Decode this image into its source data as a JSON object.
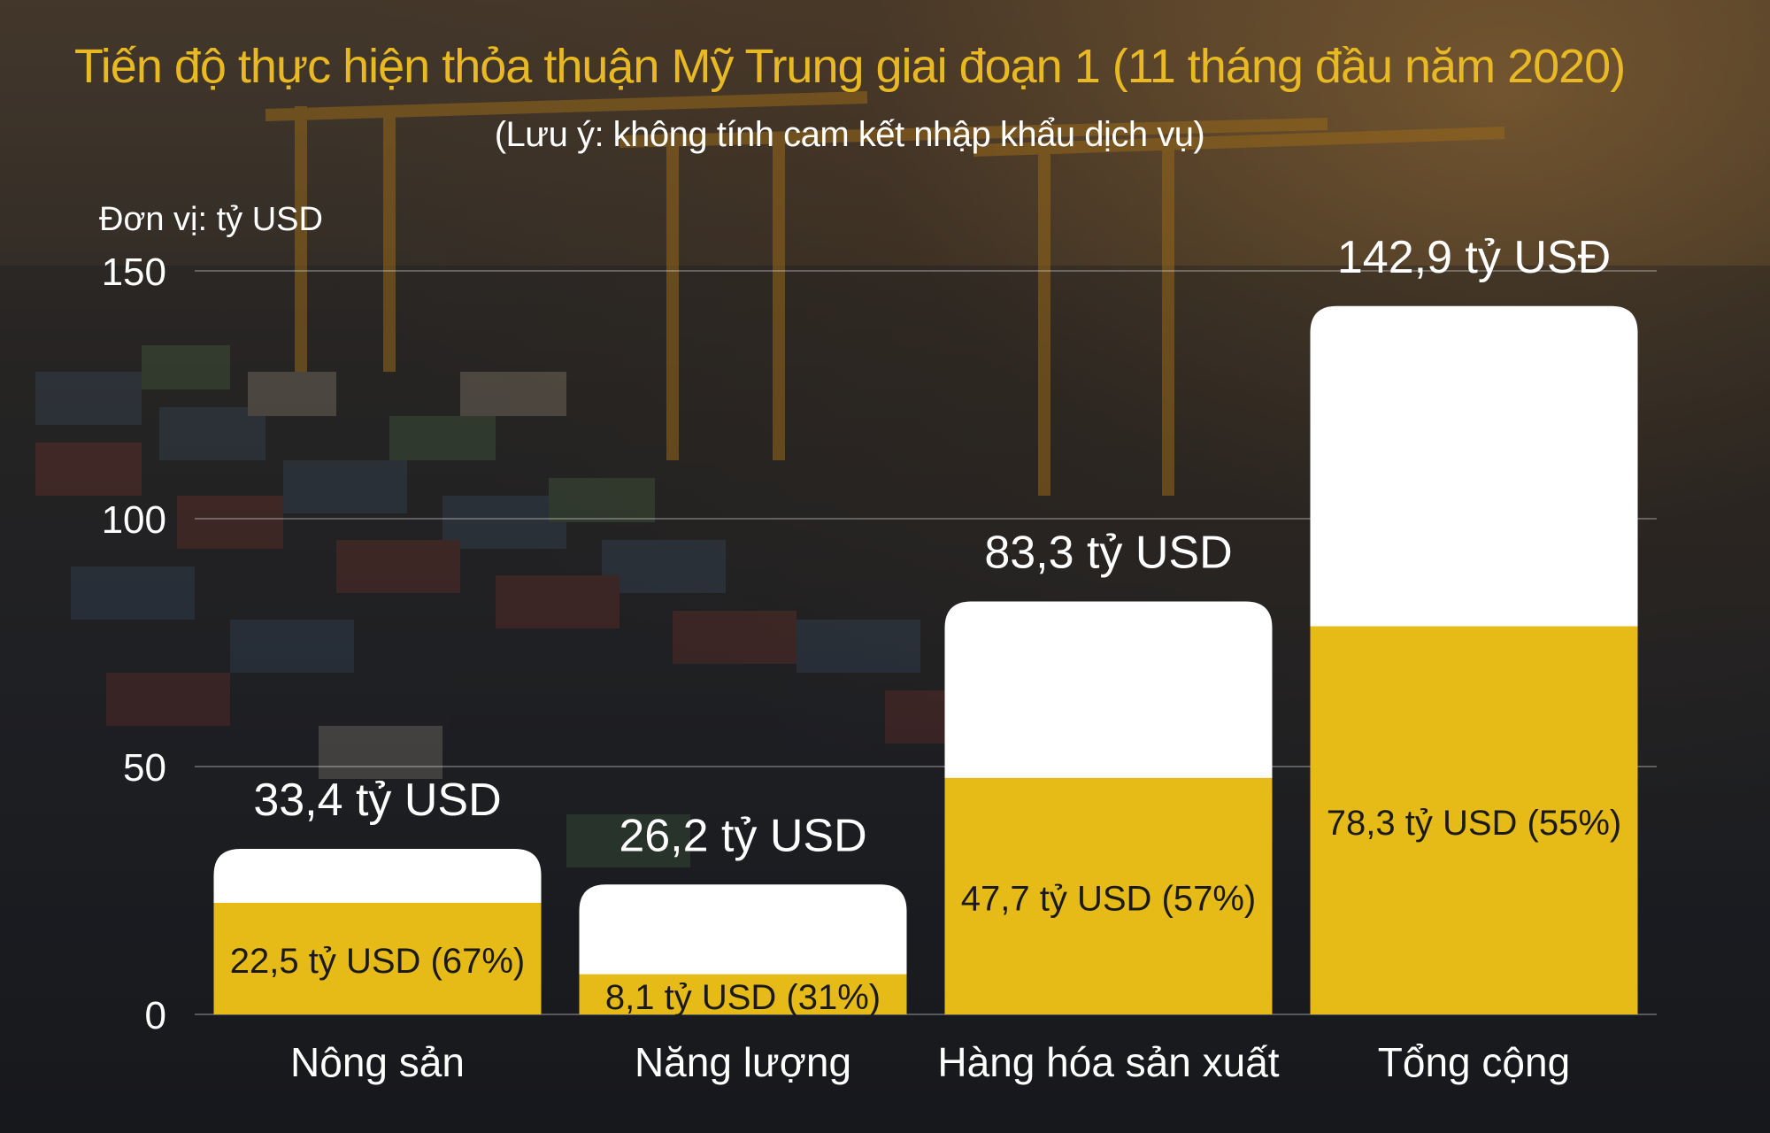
{
  "title": "Tiến độ thực hiện thỏa thuận Mỹ Trung giai đoạn 1 (11 tháng đầu năm 2020)",
  "subtitle": "(Lưu ý: không tính cam kết nhập khẩu dịch vụ)",
  "unit_label": "Đơn vị: tỷ USD",
  "colors": {
    "title": "#e8b923",
    "achieved": "#e7bb17",
    "commitment": "#ffffff",
    "text_light": "#ffffff",
    "text_dark": "#1a1a1a"
  },
  "chart_data": {
    "type": "bar",
    "ylabel": "Đơn vị: tỷ USD",
    "ylim": [
      0,
      150
    ],
    "yticks": [
      "0",
      "50",
      "100",
      "150"
    ],
    "categories": [
      "Nông sản",
      "Năng lượng",
      "Hàng hóa sản xuất",
      "Tổng cộng"
    ],
    "series": [
      {
        "values": [
          33.4,
          26.2,
          83.3,
          142.9
        ]
      },
      {
        "values": [
          22.5,
          8.1,
          47.7,
          78.3
        ]
      }
    ],
    "commitment_labels": [
      "33,4 tỷ USD",
      "26,2 tỷ USD",
      "83,3 tỷ USD",
      "142,9 tỷ USĐ"
    ],
    "achieved_labels": [
      "22,5 tỷ USD (67%)",
      "8,1 tỷ USD (31%)",
      "47,7 tỷ USD (57%)",
      "78,3 tỷ USD (55%)"
    ],
    "grid": true,
    "legend": "none"
  }
}
